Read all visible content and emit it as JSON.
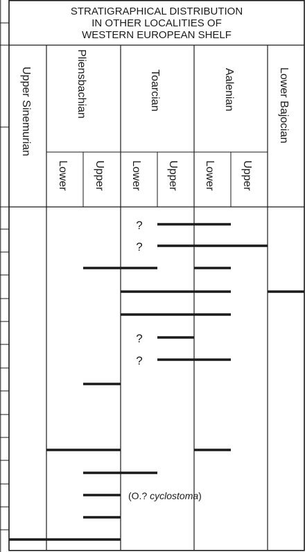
{
  "header": {
    "title_lines": [
      "STRATIGRAPHICAL DISTRIBUTION",
      "IN OTHER LOCALITIES OF",
      "WESTERN EUROPEAN SHELF"
    ]
  },
  "columns": {
    "upper_sinemurian": "Upper Sinemurian",
    "pliensbachian": "Pliensbachian",
    "toarcian": "Toarcian",
    "aalenian": "Aalenian",
    "lower_bajocian": "Lower  Bajocian",
    "pl_lower": "Lower",
    "pl_upper": "Upper",
    "to_lower": "Lower",
    "to_upper": "Upper",
    "aa_lower": "Lower",
    "aa_upper": "Upper"
  },
  "question_mark": "?",
  "annotation": {
    "prefix": "(O.? ",
    "species": "cyclostoma",
    "suffix": ")"
  },
  "colors": {
    "line": "#1a1a1a",
    "background": "#ffffff"
  },
  "diagram": {
    "substages": [
      "Upper Sinemurian",
      "Lower Pliensbachian",
      "Upper Pliensbachian",
      "Lower Toarcian",
      "Upper Toarcian",
      "Lower Aalenian",
      "Upper Aalenian",
      "Lower Bajocian"
    ],
    "ranges": [
      {
        "from": "Upper Toarcian",
        "to": "Lower Aalenian",
        "uncertain": true
      },
      {
        "from": "Upper Toarcian",
        "to": "Upper Aalenian",
        "uncertain": true
      },
      {
        "from": "Upper Pliensbachian",
        "to": "Lower Toarcian",
        "uncertain": false,
        "second": {
          "from": "Lower Aalenian",
          "to": "Lower Aalenian"
        }
      },
      {
        "from": "Lower Toarcian",
        "to": "Lower Aalenian",
        "uncertain": false,
        "second": {
          "from": "Lower Bajocian",
          "to": "Lower Bajocian"
        }
      },
      {
        "from": "Lower Toarcian",
        "to": "Lower Aalenian",
        "uncertain": false
      },
      {
        "from": "Upper Toarcian",
        "to": "Upper Toarcian",
        "uncertain": true
      },
      {
        "from": "Upper Toarcian",
        "to": "Lower Aalenian",
        "uncertain": true
      },
      {
        "from": "Upper Pliensbachian",
        "to": "Upper Pliensbachian",
        "uncertain": false
      },
      {
        "from": "Lower Pliensbachian",
        "to": "Upper Pliensbachian",
        "uncertain": false,
        "second": {
          "from": "Lower Aalenian",
          "to": "Lower Aalenian"
        }
      },
      {
        "from": "Upper Pliensbachian",
        "to": "Lower Toarcian",
        "uncertain": false
      },
      {
        "from": "Upper Pliensbachian",
        "to": "Upper Pliensbachian",
        "uncertain": false,
        "annotated": true
      },
      {
        "from": "Upper Pliensbachian",
        "to": "Upper Pliensbachian",
        "uncertain": false
      },
      {
        "from": "Upper Sinemurian",
        "to": "Upper Pliensbachian",
        "uncertain": false
      }
    ]
  }
}
